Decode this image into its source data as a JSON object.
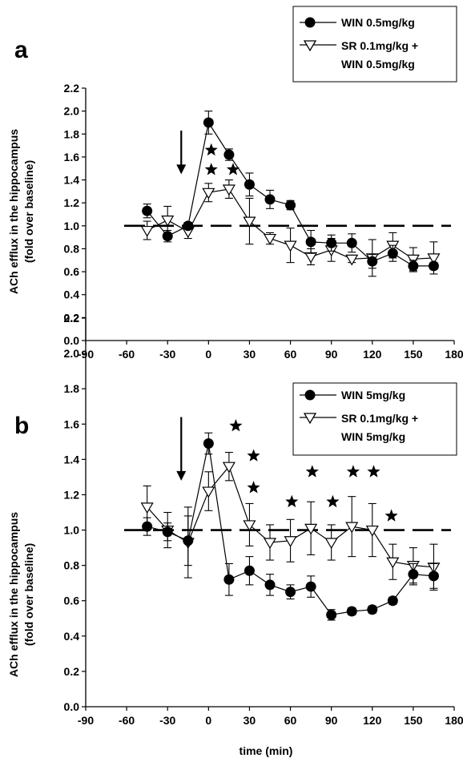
{
  "chart_data": [
    {
      "type": "line",
      "panel_label": "a",
      "ylabel_line1": "ACh efflux in the hippocampus",
      "ylabel_line2": "(fold over baseline)",
      "xlabel": "",
      "xlim": [
        -90,
        180
      ],
      "ylim": [
        0.0,
        2.2
      ],
      "x_ticks": [
        "-90",
        "-60",
        "-30",
        "0",
        "30",
        "60",
        "90",
        "120",
        "150",
        "180"
      ],
      "y_ticks": [
        "0.0",
        "0.2",
        "0.4",
        "0.6",
        "0.8",
        "1.0",
        "1.2",
        "1.4",
        "1.6",
        "1.8",
        "2.0",
        "2.2"
      ],
      "baseline": 1.0,
      "arrow_x": -20,
      "legend_position": "top-right",
      "series": [
        {
          "label": "WIN 0.5mg/kg",
          "marker": "filled-circle",
          "x": [
            -45,
            -30,
            -15,
            0,
            15,
            30,
            45,
            60,
            75,
            90,
            105,
            120,
            135,
            150,
            165
          ],
          "y": [
            1.13,
            0.91,
            1.0,
            1.9,
            1.62,
            1.36,
            1.23,
            1.18,
            0.86,
            0.85,
            0.85,
            0.69,
            0.76,
            0.65,
            0.65
          ],
          "err": [
            0.06,
            0.05,
            0.03,
            0.1,
            0.05,
            0.1,
            0.08,
            0.04,
            0.1,
            0.07,
            0.08,
            0.06,
            0.07,
            0.05,
            0.03
          ]
        },
        {
          "label_line1": "SR 0.1mg/kg +",
          "label_line2": "WIN 0.5mg/kg",
          "marker": "open-triangle-down",
          "x": [
            -45,
            -30,
            -15,
            0,
            15,
            30,
            45,
            60,
            75,
            90,
            105,
            120,
            135,
            150,
            165
          ],
          "y": [
            0.96,
            1.05,
            0.95,
            1.29,
            1.32,
            1.04,
            0.89,
            0.83,
            0.73,
            0.79,
            0.71,
            0.72,
            0.83,
            0.71,
            0.72
          ],
          "err": [
            0.08,
            0.12,
            0.06,
            0.08,
            0.08,
            0.2,
            0.05,
            0.15,
            0.07,
            0.1,
            0.03,
            0.16,
            0.11,
            0.1,
            0.14
          ]
        }
      ],
      "significance_stars": [
        {
          "x": 2,
          "y": 1.66
        },
        {
          "x": 2,
          "y": 1.49
        },
        {
          "x": 18,
          "y": 1.49
        }
      ]
    },
    {
      "type": "line",
      "panel_label": "b",
      "ylabel_line1": "ACh efflux in the hippocampus",
      "ylabel_line2": "(fold over baseline)",
      "xlabel": "time (min)",
      "xlim": [
        -90,
        180
      ],
      "ylim": [
        0.0,
        2.2
      ],
      "x_ticks": [
        "-90",
        "-60",
        "-30",
        "0",
        "30",
        "60",
        "90",
        "120",
        "150",
        "180"
      ],
      "y_ticks": [
        "0.0",
        "0.2",
        "0.4",
        "0.6",
        "0.8",
        "1.0",
        "1.2",
        "1.4",
        "1.6",
        "1.8",
        "2.0",
        "2.2"
      ],
      "baseline": 1.0,
      "arrow_x": -20,
      "legend_position": "top-right",
      "series": [
        {
          "label": "WIN 5mg/kg",
          "marker": "filled-circle",
          "x": [
            -45,
            -30,
            -15,
            0,
            15,
            30,
            45,
            60,
            75,
            90,
            105,
            120,
            135,
            150,
            165
          ],
          "y": [
            1.02,
            0.99,
            0.94,
            1.49,
            0.72,
            0.77,
            0.69,
            0.65,
            0.68,
            0.52,
            0.54,
            0.55,
            0.6,
            0.75,
            0.74
          ],
          "err": [
            0.05,
            0.05,
            0.14,
            0.06,
            0.09,
            0.08,
            0.06,
            0.04,
            0.06,
            0.03,
            0.02,
            0.02,
            0.02,
            0.06,
            0.07
          ]
        },
        {
          "label_line1": "SR 0.1mg/kg +",
          "label_line2": "WIN 5mg/kg",
          "marker": "open-triangle-down",
          "x": [
            -45,
            -30,
            -15,
            0,
            15,
            30,
            45,
            60,
            75,
            90,
            105,
            120,
            135,
            150,
            165
          ],
          "y": [
            1.13,
            1.0,
            0.93,
            1.22,
            1.36,
            1.03,
            0.93,
            0.94,
            1.01,
            0.93,
            1.02,
            1.0,
            0.82,
            0.8,
            0.79
          ],
          "err": [
            0.12,
            0.1,
            0.2,
            0.11,
            0.08,
            0.12,
            0.1,
            0.12,
            0.15,
            0.1,
            0.17,
            0.15,
            0.1,
            0.1,
            0.13
          ]
        }
      ],
      "significance_stars": [
        {
          "x": 20,
          "y": 1.59
        },
        {
          "x": 33,
          "y": 1.42
        },
        {
          "x": 33,
          "y": 1.24
        },
        {
          "x": 61,
          "y": 1.16
        },
        {
          "x": 76,
          "y": 1.33
        },
        {
          "x": 91,
          "y": 1.16
        },
        {
          "x": 106,
          "y": 1.33
        },
        {
          "x": 121,
          "y": 1.33
        },
        {
          "x": 134,
          "y": 1.08
        }
      ]
    }
  ]
}
